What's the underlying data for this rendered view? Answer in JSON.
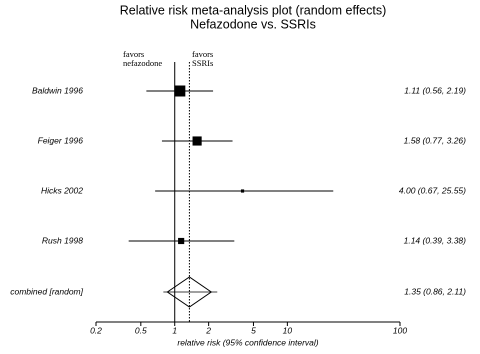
{
  "chart_data": {
    "type": "forest",
    "title": "Relative risk meta-analysis plot (random effects)",
    "subtitle": "Nefazodone vs. SSRIs",
    "x_label": "relative risk (95% confidence interval)",
    "left_header": [
      "favors",
      "nefazodone"
    ],
    "right_header": [
      "favors",
      "SSRIs"
    ],
    "log_x": true,
    "xlim": [
      0.2,
      100
    ],
    "xticks": [
      0.2,
      0.5,
      1,
      2,
      5,
      10,
      100
    ],
    "null_value": 1,
    "studies": [
      {
        "name": "Baldwin 1996",
        "estimate": 1.11,
        "lower": 0.56,
        "upper": 2.19,
        "value_label": "1.11 (0.56, 2.19)",
        "weight": 48
      },
      {
        "name": "Feiger 1996",
        "estimate": 1.58,
        "lower": 0.77,
        "upper": 3.26,
        "value_label": "1.58 (0.77, 3.26)",
        "weight": 33
      },
      {
        "name": "Hicks 2002",
        "estimate": 4.0,
        "lower": 0.67,
        "upper": 25.55,
        "value_label": "4.00 (0.67, 25.55)",
        "weight": 4
      },
      {
        "name": "Rush 1998",
        "estimate": 1.14,
        "lower": 0.39,
        "upper": 3.38,
        "value_label": "1.14 (0.39, 3.38)",
        "weight": 15
      }
    ],
    "combined": {
      "name": "combined [random]",
      "estimate": 1.35,
      "lower": 0.86,
      "upper": 2.11,
      "value_label": "1.35 (0.86, 2.11)"
    },
    "color": "#000000"
  }
}
